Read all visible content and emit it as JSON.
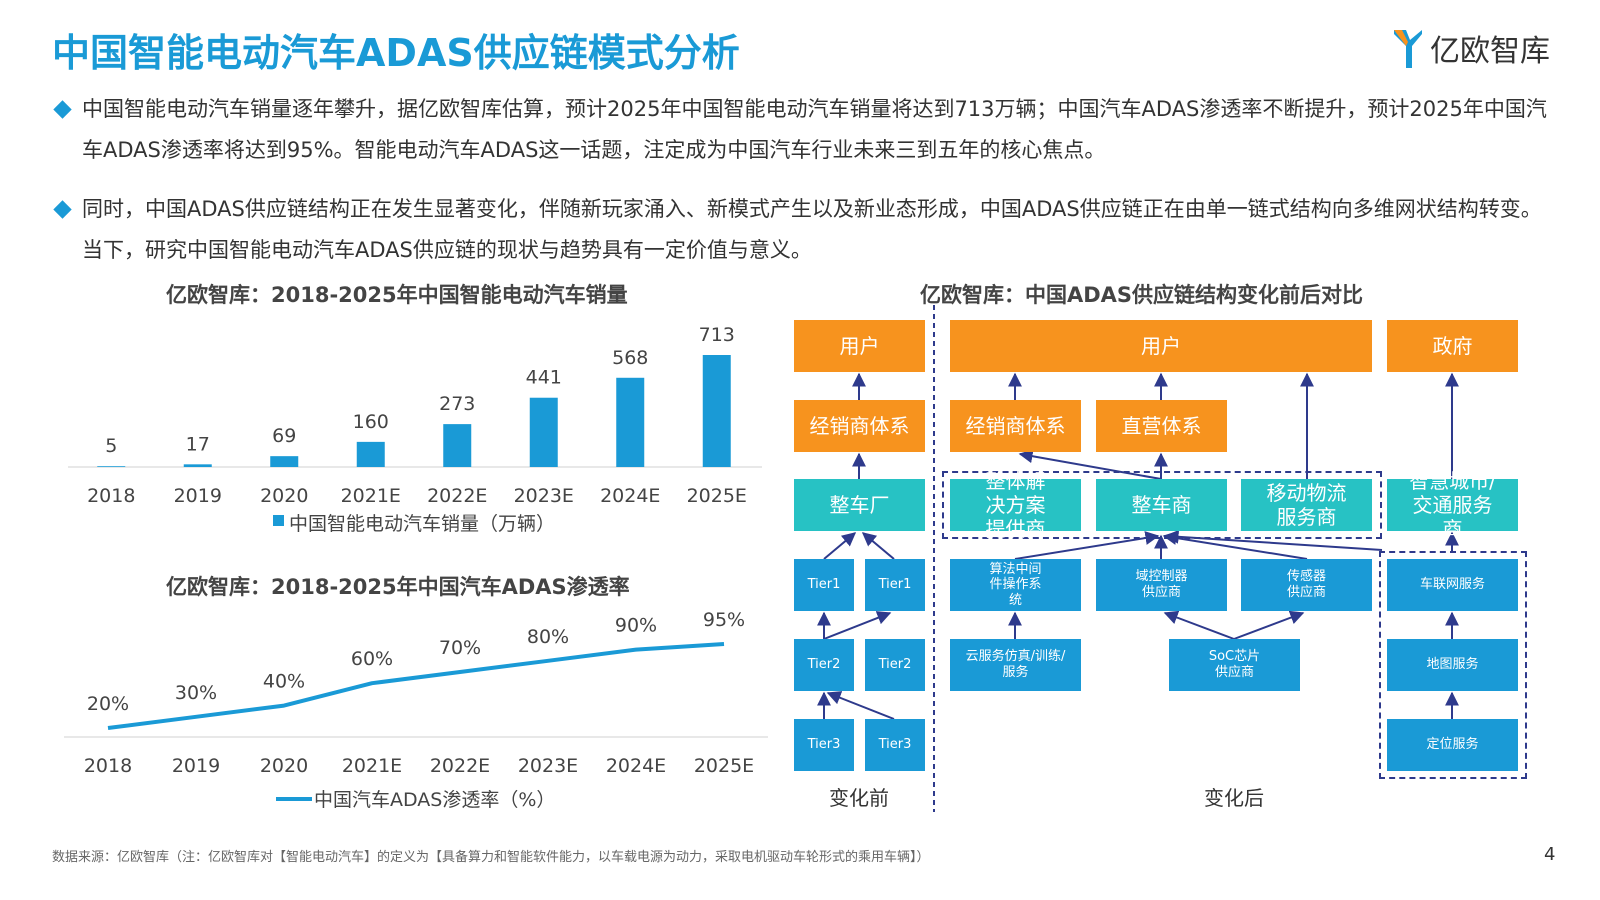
{
  "header": {
    "title": "中国智能电动汽车ADAS供应链模式分析",
    "logo_text": "亿欧智库",
    "logo_icon": "yiou-logo-icon"
  },
  "bullets": [
    "中国智能电动汽车销量逐年攀升，据亿欧智库估算，预计2025年中国智能电动汽车销量将达到713万辆；中国汽车ADAS渗透率不断提升，预计2025年中国汽车ADAS渗透率将达到95%。智能电动汽车ADAS这一话题，注定成为中国汽车行业未来三到五年的核心焦点。",
    "同时，中国ADAS供应链结构正在发生显著变化，伴随新玩家涌入、新模式产生以及新业态形成，中国ADAS供应链正在由单一链式结构向多维网状结构转变。当下，研究中国智能电动汽车ADAS供应链的现状与趋势具有一定价值与意义。"
  ],
  "chart_data": [
    {
      "type": "bar",
      "title": "亿欧智库：2018-2025年中国智能电动汽车销量",
      "categories": [
        "2018",
        "2019",
        "2020",
        "2021E",
        "2022E",
        "2023E",
        "2024E",
        "2025E"
      ],
      "series": [
        {
          "name": "中国智能电动汽车销量（万辆）",
          "values": [
            5,
            17,
            69,
            160,
            273,
            441,
            568,
            713
          ]
        }
      ],
      "data_labels": [
        "5",
        "17",
        "69",
        "160",
        "273",
        "441",
        "568",
        "713"
      ],
      "ylim": [
        0,
        713
      ],
      "legend": "bottom",
      "color": "#1a9ad6"
    },
    {
      "type": "line",
      "title": "亿欧智库：2018-2025年中国汽车ADAS渗透率",
      "categories": [
        "2018",
        "2019",
        "2020",
        "2021E",
        "2022E",
        "2023E",
        "2024E",
        "2025E"
      ],
      "series": [
        {
          "name": "中国汽车ADAS渗透率（%）",
          "values": [
            20,
            30,
            40,
            60,
            70,
            80,
            90,
            95
          ]
        }
      ],
      "data_labels": [
        "20%",
        "30%",
        "40%",
        "60%",
        "70%",
        "80%",
        "90%",
        "95%"
      ],
      "ylim": [
        0,
        100
      ],
      "legend": "bottom",
      "color": "#1a9ad6"
    }
  ],
  "diagram": {
    "title": "亿欧智库：中国ADAS供应链结构变化前后对比",
    "before": {
      "user": "用户",
      "dealer": "经销商体系",
      "oem": "整车厂",
      "tier1": [
        "Tier1",
        "Tier1"
      ],
      "tier2": [
        "Tier2",
        "Tier2"
      ],
      "tier3": [
        "Tier3",
        "Tier3"
      ],
      "caption": "变化前"
    },
    "after": {
      "user": "用户",
      "government": "政府",
      "dealer": "经销商体系",
      "direct": "直营体系",
      "solution": "整体解决方案提供商",
      "oem": "整车商",
      "mobility": "移动物流服务商",
      "smart_city": "智慧城市/交通服务商",
      "algo": "算法中间件操作系统",
      "domain": "域控制器供应商",
      "sensor": "传感器供应商",
      "v2x": "车联网服务",
      "cloud": "云服务仿真/训练/服务",
      "soc": "SoC芯片供应商",
      "map": "地图服务",
      "positioning": "定位服务",
      "caption": "变化后"
    },
    "colors": {
      "orange": "#f7931e",
      "teal": "#27c2c4",
      "blue": "#1a9ad6",
      "dash": "#2e3a8c"
    }
  },
  "footer": {
    "source": "数据来源：亿欧智库（注：亿欧智库对【智能电动汽车】的定义为【具备算力和智能软件能力，以车载电源为动力，采取电机驱动车轮形式的乘用车辆】）",
    "page": "4"
  }
}
